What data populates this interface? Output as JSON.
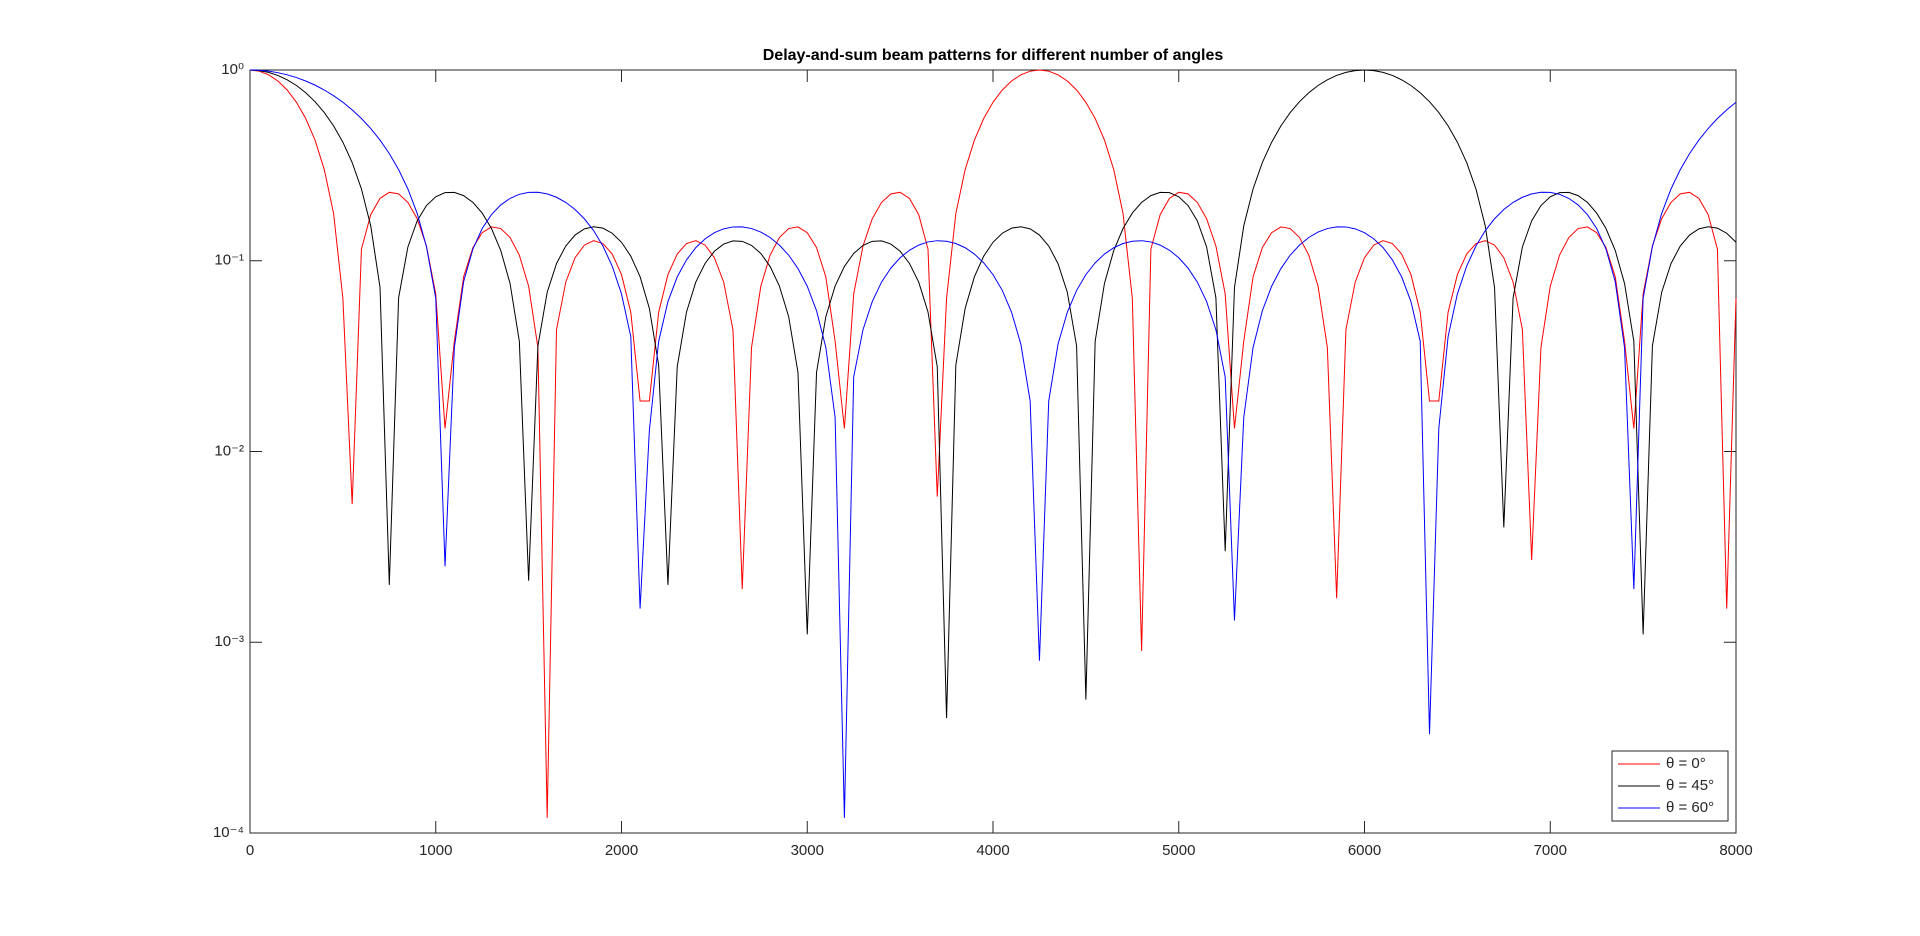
{
  "chart_data": {
    "type": "line",
    "title": "Delay-and-sum beam patterns for different number of angles",
    "x": [
      0,
      50,
      100,
      150,
      200,
      250,
      300,
      350,
      400,
      450,
      500,
      550,
      600,
      650,
      700,
      750,
      800,
      850,
      900,
      950,
      1000,
      1050,
      1100,
      1150,
      1200,
      1250,
      1300,
      1350,
      1400,
      1450,
      1500,
      1550,
      1600,
      1650,
      1700,
      1750,
      1800,
      1850,
      1900,
      1950,
      2000,
      2050,
      2100,
      2150,
      2200,
      2250,
      2300,
      2350,
      2400,
      2450,
      2500,
      2550,
      2600,
      2650,
      2700,
      2750,
      2800,
      2850,
      2900,
      2950,
      3000,
      3050,
      3100,
      3150,
      3200,
      3250,
      3300,
      3350,
      3400,
      3450,
      3500,
      3550,
      3600,
      3650,
      3700,
      3750,
      3800,
      3850,
      3900,
      3950,
      4000,
      4050,
      4100,
      4150,
      4200,
      4250,
      4300,
      4350,
      4400,
      4450,
      4500,
      4550,
      4600,
      4650,
      4700,
      4750,
      4800,
      4850,
      4900,
      4950,
      5000,
      5050,
      5100,
      5150,
      5200,
      5250,
      5300,
      5350,
      5400,
      5450,
      5500,
      5550,
      5600,
      5650,
      5700,
      5750,
      5800,
      5850,
      5900,
      5950,
      6000,
      6050,
      6100,
      6150,
      6200,
      6250,
      6300,
      6350,
      6400,
      6450,
      6500,
      6550,
      6600,
      6650,
      6700,
      6750,
      6800,
      6850,
      6900,
      6950,
      7000,
      7050,
      7100,
      7150,
      7200,
      7250,
      7300,
      7350,
      7400,
      7450,
      7500,
      7550,
      7600,
      7650,
      7700,
      7750,
      7800,
      7850,
      7900,
      7950,
      8000
    ],
    "series": [
      {
        "name": "θ = 0°",
        "color": "#ff0000",
        "values": [
          1,
          0.9858,
          0.9435,
          0.8755,
          0.7855,
          0.6774,
          0.5567,
          0.4291,
          0.3005,
          0.177,
          0.0636,
          0.0053,
          0.1152,
          0.1746,
          0.2123,
          0.2284,
          0.2242,
          0.2023,
          0.166,
          0.1195,
          0.067,
          0.0132,
          0.0378,
          0.0823,
          0.1172,
          0.1403,
          0.1504,
          0.1475,
          0.1324,
          0.107,
          0.0735,
          0.0351,
          0.00012,
          0.0435,
          0.0773,
          0.1037,
          0.1208,
          0.1274,
          0.1231,
          0.1084,
          0.0846,
          0.0537,
          0.0184,
          0.0184,
          0.0537,
          0.0846,
          0.1084,
          0.1231,
          0.1274,
          0.1208,
          0.1037,
          0.0773,
          0.0435,
          0.0019,
          0.0351,
          0.0735,
          0.107,
          0.1324,
          0.1475,
          0.1504,
          0.1403,
          0.1172,
          0.0823,
          0.0378,
          0.0132,
          0.067,
          0.1195,
          0.166,
          0.2023,
          0.2242,
          0.2284,
          0.2123,
          0.1746,
          0.1152,
          0.0058,
          0.0636,
          0.177,
          0.3005,
          0.4291,
          0.5567,
          0.6774,
          0.7855,
          0.8755,
          0.9435,
          0.9858,
          1,
          0.9858,
          0.9435,
          0.8755,
          0.7855,
          0.6774,
          0.5567,
          0.4291,
          0.3005,
          0.177,
          0.0636,
          0.0009,
          0.1152,
          0.1746,
          0.2123,
          0.2284,
          0.2242,
          0.2023,
          0.166,
          0.1195,
          0.067,
          0.0132,
          0.0378,
          0.0823,
          0.1172,
          0.1403,
          0.1504,
          0.1475,
          0.1324,
          0.107,
          0.0735,
          0.0351,
          0.0017,
          0.0435,
          0.0773,
          0.1037,
          0.1208,
          0.1274,
          0.1231,
          0.1084,
          0.0846,
          0.0537,
          0.0184,
          0.0184,
          0.0537,
          0.0846,
          0.1084,
          0.1231,
          0.1274,
          0.1208,
          0.1037,
          0.0773,
          0.0435,
          0.0027,
          0.0351,
          0.0735,
          0.107,
          0.1324,
          0.1475,
          0.1504,
          0.1403,
          0.1172,
          0.0823,
          0.0378,
          0.0132,
          0.067,
          0.1195,
          0.166,
          0.2023,
          0.2242,
          0.2284,
          0.2123,
          0.1746,
          0.1152,
          0.0015,
          0.0636
        ]
      },
      {
        "name": "θ = 45°",
        "color": "#000000",
        "values": [
          1,
          0.9927,
          0.9713,
          0.9364,
          0.8887,
          0.8293,
          0.76,
          0.6821,
          0.5979,
          0.5093,
          0.4182,
          0.3271,
          0.2378,
          0.1523,
          0.0725,
          0.002,
          0.0639,
          0.1181,
          0.1618,
          0.1947,
          0.2165,
          0.2275,
          0.2283,
          0.2195,
          0.2023,
          0.1778,
          0.1476,
          0.1131,
          0.076,
          0.0378,
          0.0021,
          0.0358,
          0.0684,
          0.0966,
          0.1195,
          0.1364,
          0.147,
          0.1508,
          0.1482,
          0.1394,
          0.125,
          0.1057,
          0.0825,
          0.0563,
          0.0284,
          0.002,
          0.0278,
          0.0539,
          0.0773,
          0.0969,
          0.1121,
          0.1223,
          0.1271,
          0.1264,
          0.1204,
          0.1092,
          0.0934,
          0.0737,
          0.0509,
          0.026,
          0.0011,
          0.026,
          0.0509,
          0.0737,
          0.0934,
          0.1092,
          0.1204,
          0.1264,
          0.1271,
          0.1223,
          0.1121,
          0.0969,
          0.0773,
          0.0539,
          0.0278,
          0.0004,
          0.0284,
          0.0563,
          0.0825,
          0.1057,
          0.125,
          0.1394,
          0.1482,
          0.1508,
          0.147,
          0.1364,
          0.1195,
          0.0966,
          0.0684,
          0.0358,
          0.0005,
          0.0378,
          0.076,
          0.1131,
          0.1476,
          0.1778,
          0.2023,
          0.2195,
          0.2283,
          0.2275,
          0.2165,
          0.1947,
          0.1618,
          0.1181,
          0.0639,
          0.003,
          0.0725,
          0.1523,
          0.2378,
          0.3271,
          0.4182,
          0.5093,
          0.5979,
          0.6821,
          0.76,
          0.8293,
          0.8887,
          0.9364,
          0.9713,
          0.9927,
          1,
          0.9927,
          0.9713,
          0.9364,
          0.8887,
          0.8293,
          0.76,
          0.6821,
          0.5979,
          0.5093,
          0.4182,
          0.3271,
          0.2378,
          0.1523,
          0.0725,
          0.004,
          0.0639,
          0.1181,
          0.1618,
          0.1947,
          0.2165,
          0.2275,
          0.2283,
          0.2195,
          0.2023,
          0.1778,
          0.1476,
          0.1131,
          0.076,
          0.0378,
          0.0011,
          0.0358,
          0.0684,
          0.0966,
          0.1195,
          0.1364,
          0.147,
          0.1508,
          0.1482,
          0.1394,
          0.125
        ]
      },
      {
        "name": "θ = 60°",
        "color": "#0000ff",
        "values": [
          1,
          0.9964,
          0.9858,
          0.968,
          0.9435,
          0.9126,
          0.8755,
          0.8331,
          0.7855,
          0.7332,
          0.6774,
          0.6182,
          0.5567,
          0.4934,
          0.4291,
          0.3643,
          0.3005,
          0.2378,
          0.177,
          0.1186,
          0.0636,
          0.0025,
          0.035,
          0.0776,
          0.1152,
          0.1476,
          0.1746,
          0.1962,
          0.2123,
          0.223,
          0.2284,
          0.2287,
          0.2242,
          0.2152,
          0.2023,
          0.1857,
          0.166,
          0.1438,
          0.1195,
          0.0937,
          0.067,
          0.04,
          0.0015,
          0.0129,
          0.0378,
          0.0611,
          0.0823,
          0.101,
          0.1172,
          0.1302,
          0.1403,
          0.147,
          0.1504,
          0.1505,
          0.1475,
          0.1414,
          0.1324,
          0.1208,
          0.107,
          0.091,
          0.0735,
          0.0547,
          0.0351,
          0.0151,
          0.00012,
          0.0246,
          0.0435,
          0.0611,
          0.0773,
          0.0915,
          0.1037,
          0.1135,
          0.1208,
          0.1255,
          0.1274,
          0.1266,
          0.1231,
          0.117,
          0.1084,
          0.0975,
          0.0846,
          0.0699,
          0.0537,
          0.0365,
          0.0184,
          0.0008,
          0.0184,
          0.0365,
          0.0537,
          0.0699,
          0.0846,
          0.0975,
          0.1084,
          0.117,
          0.1231,
          0.1266,
          0.1274,
          0.1255,
          0.1208,
          0.1135,
          0.1037,
          0.0915,
          0.0773,
          0.0611,
          0.0435,
          0.0246,
          0.0013,
          0.0151,
          0.0351,
          0.0547,
          0.0735,
          0.091,
          0.107,
          0.1208,
          0.1324,
          0.1414,
          0.1475,
          0.1505,
          0.1504,
          0.147,
          0.1403,
          0.1302,
          0.1172,
          0.101,
          0.0823,
          0.0611,
          0.0378,
          0.00033,
          0.0132,
          0.04,
          0.067,
          0.0937,
          0.1195,
          0.1438,
          0.166,
          0.1857,
          0.2023,
          0.2152,
          0.2242,
          0.2287,
          0.2284,
          0.223,
          0.2123,
          0.1962,
          0.1746,
          0.1476,
          0.1152,
          0.0776,
          0.035,
          0.0019,
          0.0636,
          0.1186,
          0.177,
          0.2378,
          0.3005,
          0.3643,
          0.4291,
          0.4934,
          0.5567,
          0.6182,
          0.6774
        ]
      }
    ],
    "xlim": [
      0,
      8000
    ],
    "xticks": [
      0,
      1000,
      2000,
      3000,
      4000,
      5000,
      6000,
      7000,
      8000
    ],
    "ylim": [
      0.0001,
      1
    ],
    "yscale": "log",
    "yticks": [
      {
        "value": 0.0001,
        "label": "10⁻⁴"
      },
      {
        "value": 0.001,
        "label": "10⁻³"
      },
      {
        "value": 0.01,
        "label": "10⁻²"
      },
      {
        "value": 0.1,
        "label": "10⁻¹"
      },
      {
        "value": 1,
        "label": "10⁰"
      }
    ],
    "legend": "lower right"
  }
}
